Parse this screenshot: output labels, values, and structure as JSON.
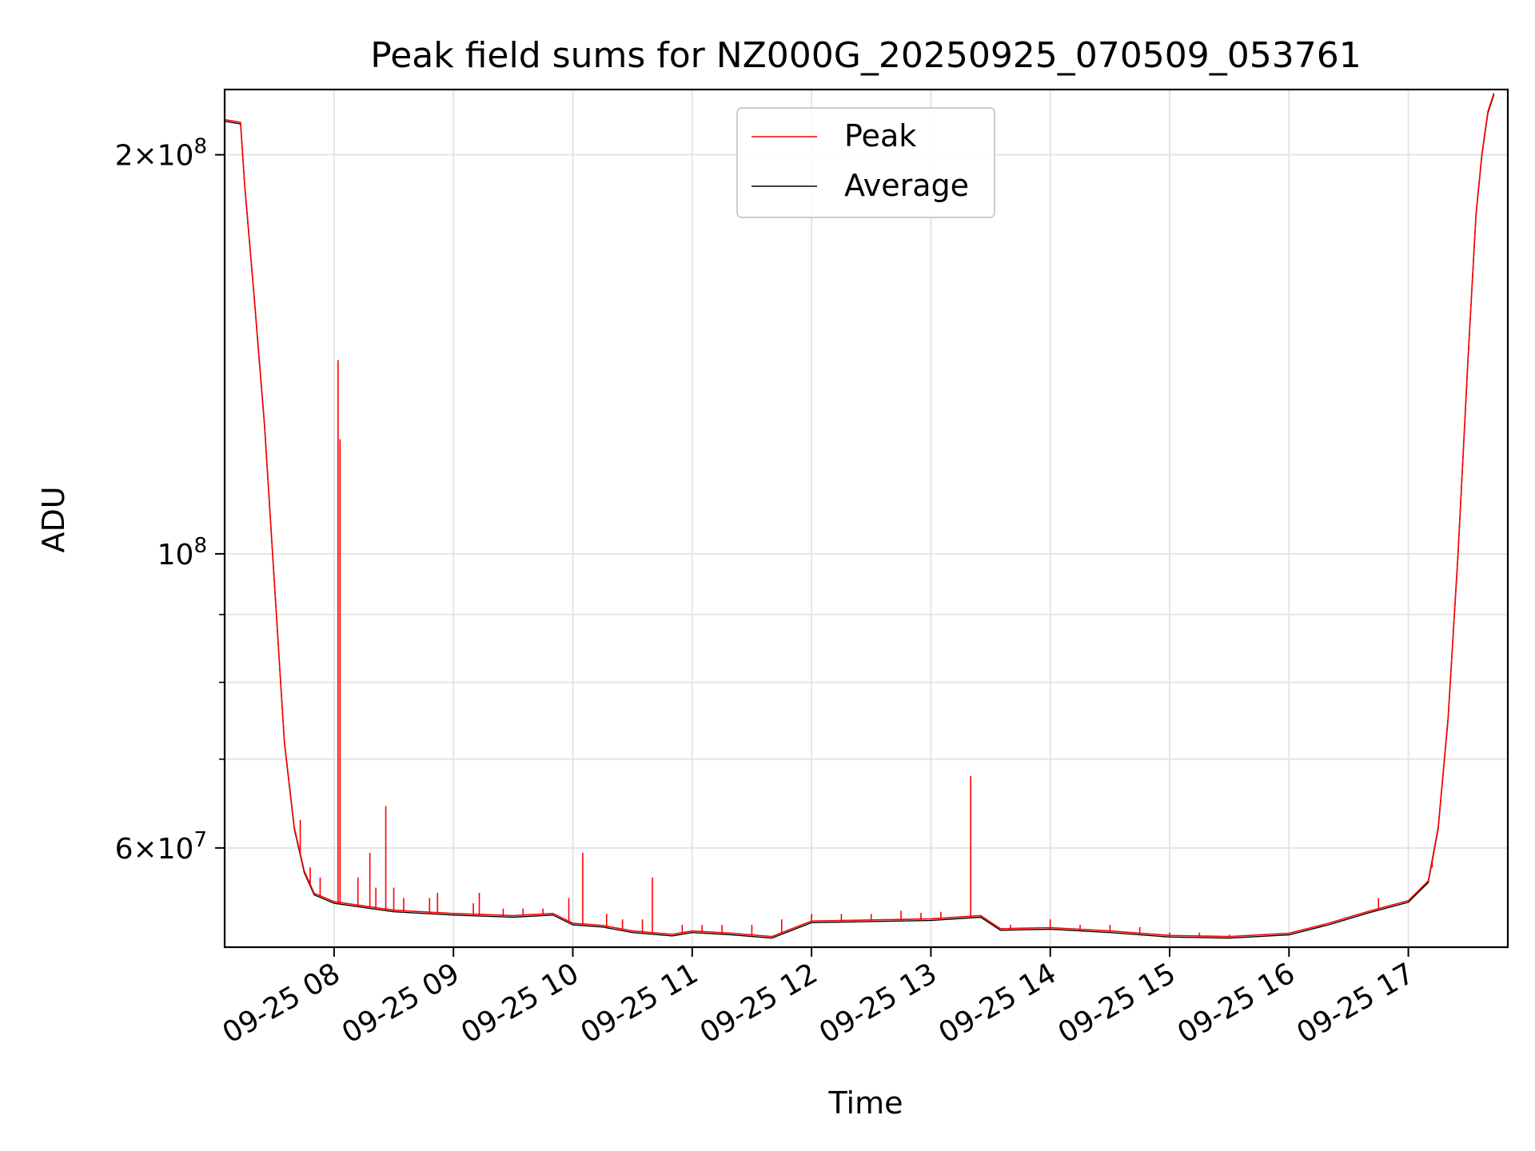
{
  "chart_data": {
    "type": "line",
    "title": "Peak field sums for NZ000G_20250925_070509_053761",
    "xlabel": "Time",
    "ylabel": "ADU",
    "y_scale": "log",
    "ylim": [
      50500000,
      224000000
    ],
    "xlim": [
      "2025-09-25 07:05",
      "2025-09-25 17:50"
    ],
    "grid": true,
    "legend_position": "top-center",
    "x_ticks": [
      {
        "t": "2025-09-25 08:00",
        "label": "09-25 08"
      },
      {
        "t": "2025-09-25 09:00",
        "label": "09-25 09"
      },
      {
        "t": "2025-09-25 10:00",
        "label": "09-25 10"
      },
      {
        "t": "2025-09-25 11:00",
        "label": "09-25 11"
      },
      {
        "t": "2025-09-25 12:00",
        "label": "09-25 12"
      },
      {
        "t": "2025-09-25 13:00",
        "label": "09-25 13"
      },
      {
        "t": "2025-09-25 14:00",
        "label": "09-25 14"
      },
      {
        "t": "2025-09-25 15:00",
        "label": "09-25 15"
      },
      {
        "t": "2025-09-25 16:00",
        "label": "09-25 16"
      },
      {
        "t": "2025-09-25 17:00",
        "label": "09-25 17"
      }
    ],
    "y_ticks": [
      {
        "value": 200000000,
        "label_base": "2×10",
        "label_exp": "8"
      },
      {
        "value": 100000000,
        "label_base": "10",
        "label_exp": "8"
      },
      {
        "value": 60000000,
        "label_base": "6×10",
        "label_exp": "7"
      }
    ],
    "y_minor_ticks": [
      70000000,
      80000000,
      90000000
    ],
    "series": [
      {
        "name": "Average",
        "color": "#000000",
        "points": [
          [
            "2025-09-25 07:05",
            212000000
          ],
          [
            "2025-09-25 07:13",
            211000000
          ],
          [
            "2025-09-25 07:15",
            190000000
          ],
          [
            "2025-09-25 07:20",
            155000000
          ],
          [
            "2025-09-25 07:25",
            125000000
          ],
          [
            "2025-09-25 07:30",
            95000000
          ],
          [
            "2025-09-25 07:35",
            72000000
          ],
          [
            "2025-09-25 07:40",
            62000000
          ],
          [
            "2025-09-25 07:45",
            57500000
          ],
          [
            "2025-09-25 07:50",
            55300000
          ],
          [
            "2025-09-25 08:00",
            54500000
          ],
          [
            "2025-09-25 08:15",
            54100000
          ],
          [
            "2025-09-25 08:30",
            53700000
          ],
          [
            "2025-09-25 09:00",
            53400000
          ],
          [
            "2025-09-25 09:30",
            53200000
          ],
          [
            "2025-09-25 09:50",
            53400000
          ],
          [
            "2025-09-25 10:00",
            52500000
          ],
          [
            "2025-09-25 10:15",
            52300000
          ],
          [
            "2025-09-25 10:30",
            51800000
          ],
          [
            "2025-09-25 10:50",
            51500000
          ],
          [
            "2025-09-25 11:00",
            51800000
          ],
          [
            "2025-09-25 11:20",
            51600000
          ],
          [
            "2025-09-25 11:40",
            51300000
          ],
          [
            "2025-09-25 12:00",
            52700000
          ],
          [
            "2025-09-25 12:30",
            52800000
          ],
          [
            "2025-09-25 13:00",
            52900000
          ],
          [
            "2025-09-25 13:25",
            53200000
          ],
          [
            "2025-09-25 13:35",
            52000000
          ],
          [
            "2025-09-25 14:00",
            52100000
          ],
          [
            "2025-09-25 14:30",
            51800000
          ],
          [
            "2025-09-25 15:00",
            51400000
          ],
          [
            "2025-09-25 15:30",
            51300000
          ],
          [
            "2025-09-25 16:00",
            51600000
          ],
          [
            "2025-09-25 16:20",
            52500000
          ],
          [
            "2025-09-25 16:40",
            53600000
          ],
          [
            "2025-09-25 17:00",
            54600000
          ],
          [
            "2025-09-25 17:10",
            56500000
          ],
          [
            "2025-09-25 17:15",
            62000000
          ],
          [
            "2025-09-25 17:20",
            75000000
          ],
          [
            "2025-09-25 17:25",
            100000000
          ],
          [
            "2025-09-25 17:30",
            140000000
          ],
          [
            "2025-09-25 17:34",
            180000000
          ],
          [
            "2025-09-25 17:37",
            200000000
          ],
          [
            "2025-09-25 17:40",
            215000000
          ],
          [
            "2025-09-25 17:43",
            222000000
          ]
        ]
      },
      {
        "name": "Peak",
        "color": "#ff0000",
        "spikes": [
          [
            "2025-09-25 07:43",
            63000000
          ],
          [
            "2025-09-25 07:48",
            58000000
          ],
          [
            "2025-09-25 07:53",
            57000000
          ],
          [
            "2025-09-25 08:02",
            140000000
          ],
          [
            "2025-09-25 08:03",
            122000000
          ],
          [
            "2025-09-25 08:12",
            57000000
          ],
          [
            "2025-09-25 08:18",
            59500000
          ],
          [
            "2025-09-25 08:21",
            56000000
          ],
          [
            "2025-09-25 08:26",
            64500000
          ],
          [
            "2025-09-25 08:30",
            56000000
          ],
          [
            "2025-09-25 08:35",
            55000000
          ],
          [
            "2025-09-25 08:48",
            55000000
          ],
          [
            "2025-09-25 08:52",
            55500000
          ],
          [
            "2025-09-25 09:10",
            54500000
          ],
          [
            "2025-09-25 09:13",
            55500000
          ],
          [
            "2025-09-25 09:25",
            54000000
          ],
          [
            "2025-09-25 09:35",
            54000000
          ],
          [
            "2025-09-25 09:45",
            54000000
          ],
          [
            "2025-09-25 09:58",
            55000000
          ],
          [
            "2025-09-25 10:05",
            59500000
          ],
          [
            "2025-09-25 10:17",
            53500000
          ],
          [
            "2025-09-25 10:25",
            53000000
          ],
          [
            "2025-09-25 10:35",
            53000000
          ],
          [
            "2025-09-25 10:40",
            57000000
          ],
          [
            "2025-09-25 10:55",
            52500000
          ],
          [
            "2025-09-25 11:05",
            52500000
          ],
          [
            "2025-09-25 11:15",
            52500000
          ],
          [
            "2025-09-25 11:30",
            52500000
          ],
          [
            "2025-09-25 11:45",
            53000000
          ],
          [
            "2025-09-25 12:00",
            53500000
          ],
          [
            "2025-09-25 12:15",
            53500000
          ],
          [
            "2025-09-25 12:30",
            53500000
          ],
          [
            "2025-09-25 12:45",
            53800000
          ],
          [
            "2025-09-25 12:55",
            53600000
          ],
          [
            "2025-09-25 13:05",
            53700000
          ],
          [
            "2025-09-25 13:20",
            68000000
          ],
          [
            "2025-09-25 13:40",
            52500000
          ],
          [
            "2025-09-25 14:00",
            53000000
          ],
          [
            "2025-09-25 14:15",
            52500000
          ],
          [
            "2025-09-25 14:30",
            52500000
          ],
          [
            "2025-09-25 14:45",
            52300000
          ],
          [
            "2025-09-25 15:00",
            51800000
          ],
          [
            "2025-09-25 15:15",
            51800000
          ],
          [
            "2025-09-25 15:30",
            51600000
          ],
          [
            "2025-09-25 16:45",
            55000000
          ],
          [
            "2025-09-25 17:12",
            58000000
          ]
        ]
      }
    ]
  }
}
